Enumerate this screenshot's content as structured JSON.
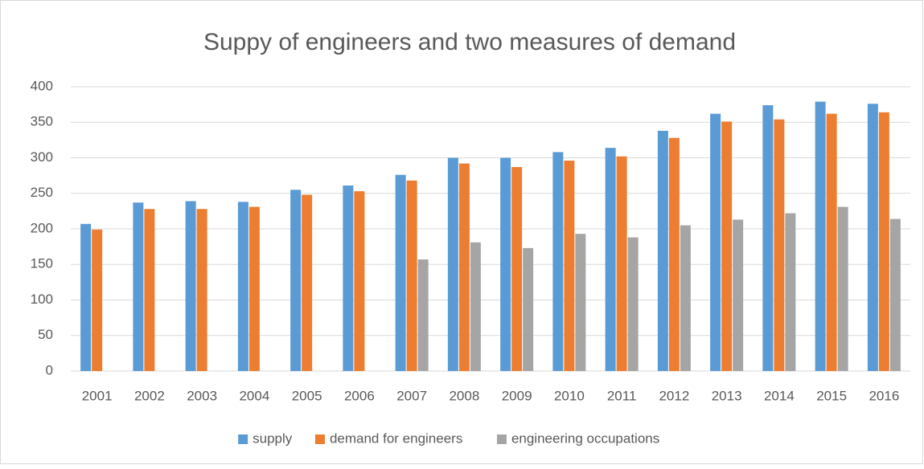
{
  "chart_data": {
    "type": "bar",
    "title": "Suppy of engineers and two measures of demand",
    "categories": [
      "2001",
      "2002",
      "2003",
      "2004",
      "2005",
      "2006",
      "2007",
      "2008",
      "2009",
      "2010",
      "2011",
      "2012",
      "2013",
      "2014",
      "2015",
      "2016"
    ],
    "series": [
      {
        "name": "supply",
        "color": "#5b9bd5",
        "values": [
          207,
          237,
          239,
          238,
          255,
          261,
          276,
          300,
          300,
          308,
          314,
          338,
          362,
          374,
          379,
          376
        ]
      },
      {
        "name": "demand for engineers",
        "color": "#ed7d31",
        "values": [
          199,
          228,
          228,
          231,
          248,
          253,
          268,
          292,
          287,
          296,
          302,
          328,
          351,
          354,
          362,
          364
        ]
      },
      {
        "name": "engineering occupations",
        "color": "#a5a5a5",
        "values": [
          null,
          null,
          null,
          null,
          null,
          null,
          157,
          181,
          173,
          193,
          188,
          205,
          213,
          222,
          231,
          214
        ]
      }
    ],
    "ylim": [
      0,
      400
    ],
    "yticks": [
      0,
      50,
      100,
      150,
      200,
      250,
      300,
      350,
      400
    ],
    "grid": true,
    "legend": "bottom"
  }
}
